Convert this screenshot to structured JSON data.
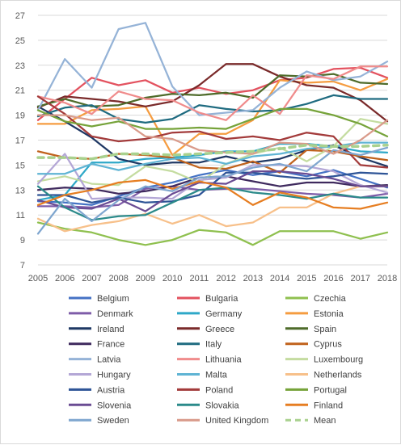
{
  "chart_data": {
    "type": "line",
    "title": "",
    "xlabel": "",
    "ylabel": "",
    "x": [
      "2005",
      "2006",
      "2007",
      "2008",
      "2009",
      "2010",
      "2011",
      "2012",
      "2013",
      "2014",
      "2015",
      "2016",
      "2017",
      "2018"
    ],
    "ylim": [
      7,
      27
    ],
    "yticks": [
      7,
      9,
      11,
      13,
      15,
      17,
      19,
      21,
      23,
      25,
      27
    ],
    "grid": "horizontal",
    "legend_position": "bottom",
    "series": [
      {
        "name": "Belgium",
        "color": "#4472c4",
        "values": [
          12.1,
          12.0,
          11.8,
          12.5,
          13.2,
          13.6,
          14.2,
          14.6,
          14.2,
          14.5,
          14.1,
          14.6,
          13.9,
          13.2
        ]
      },
      {
        "name": "Bulgaria",
        "color": "#e3525f",
        "values": [
          18.6,
          20.3,
          22.0,
          21.4,
          21.8,
          20.8,
          21.2,
          20.7,
          21.0,
          21.8,
          22.0,
          22.7,
          22.8,
          22.0
        ]
      },
      {
        "name": "Czechia",
        "color": "#8fc04f",
        "values": [
          10.4,
          9.9,
          9.6,
          9.0,
          8.6,
          9.0,
          9.8,
          9.6,
          8.6,
          9.7,
          9.7,
          9.7,
          9.1,
          9.6
        ]
      },
      {
        "name": "Denmark",
        "color": "#7e5ca8",
        "values": [
          11.7,
          11.7,
          11.6,
          11.8,
          13.1,
          13.3,
          13.0,
          13.1,
          13.1,
          12.9,
          12.7,
          12.6,
          12.4,
          12.7
        ]
      },
      {
        "name": "Germany",
        "color": "#2ea8c8",
        "values": [
          12.2,
          12.6,
          15.2,
          15.2,
          15.5,
          15.6,
          15.8,
          16.1,
          16.1,
          16.7,
          16.7,
          16.5,
          16.1,
          16.0
        ]
      },
      {
        "name": "Estonia",
        "color": "#f59c40",
        "values": [
          18.3,
          18.3,
          19.4,
          19.5,
          19.7,
          15.8,
          17.5,
          17.5,
          18.6,
          21.8,
          21.6,
          21.7,
          21.0,
          21.9
        ]
      },
      {
        "name": "Ireland",
        "color": "#1f3864",
        "values": [
          19.7,
          18.5,
          17.2,
          15.5,
          15.0,
          15.2,
          15.2,
          15.7,
          15.2,
          15.5,
          16.2,
          16.6,
          15.6,
          14.9
        ]
      },
      {
        "name": "Greece",
        "color": "#7a2a2a",
        "values": [
          19.6,
          20.5,
          20.3,
          20.1,
          19.7,
          20.1,
          21.4,
          23.1,
          23.1,
          22.1,
          21.4,
          21.2,
          20.2,
          18.5
        ]
      },
      {
        "name": "Spain",
        "color": "#4e6b2a",
        "values": [
          19.7,
          20.3,
          19.7,
          19.8,
          20.4,
          20.7,
          20.6,
          20.8,
          20.4,
          22.2,
          22.1,
          22.3,
          21.6,
          21.5
        ]
      },
      {
        "name": "France",
        "color": "#3f2a5e",
        "values": [
          13.0,
          13.2,
          13.1,
          12.7,
          12.9,
          13.3,
          14.0,
          14.1,
          13.7,
          13.3,
          13.6,
          13.6,
          13.3,
          13.4
        ]
      },
      {
        "name": "Italy",
        "color": "#1f6b80",
        "values": [
          18.9,
          19.6,
          19.8,
          18.7,
          18.4,
          18.7,
          19.8,
          19.5,
          19.3,
          19.4,
          19.9,
          20.6,
          20.3,
          20.3
        ]
      },
      {
        "name": "Cyprus",
        "color": "#c0621c",
        "values": [
          16.1,
          15.6,
          15.5,
          15.9,
          15.8,
          15.6,
          14.8,
          14.7,
          15.3,
          14.4,
          16.2,
          16.1,
          15.7,
          15.4
        ]
      },
      {
        "name": "Latvia",
        "color": "#95b3d7",
        "values": [
          19.4,
          23.5,
          21.2,
          25.9,
          26.4,
          21.3,
          19.0,
          19.2,
          19.4,
          21.2,
          22.5,
          21.8,
          22.1,
          23.3
        ]
      },
      {
        "name": "Lithuania",
        "color": "#f08c8c",
        "values": [
          20.5,
          20.0,
          19.1,
          20.9,
          20.3,
          20.2,
          19.2,
          18.6,
          20.6,
          19.1,
          22.2,
          21.9,
          22.9,
          22.9
        ]
      },
      {
        "name": "Luxembourg",
        "color": "#c4dca0",
        "values": [
          13.7,
          14.1,
          13.5,
          13.4,
          14.9,
          14.5,
          13.6,
          15.1,
          15.9,
          16.4,
          15.3,
          16.5,
          18.7,
          18.3
        ]
      },
      {
        "name": "Hungary",
        "color": "#b4a7d6",
        "values": [
          13.5,
          15.9,
          12.3,
          12.4,
          12.4,
          12.3,
          13.8,
          14.0,
          15.0,
          15.0,
          14.9,
          14.5,
          13.4,
          12.8
        ]
      },
      {
        "name": "Malta",
        "color": "#5fb4d4",
        "values": [
          14.3,
          14.3,
          15.1,
          14.6,
          15.1,
          15.5,
          15.6,
          15.1,
          15.7,
          15.9,
          16.3,
          16.5,
          16.8,
          16.8
        ]
      },
      {
        "name": "Netherlands",
        "color": "#f7c08a",
        "values": [
          10.7,
          9.7,
          10.2,
          10.5,
          11.1,
          10.3,
          11.0,
          10.1,
          10.4,
          11.6,
          11.6,
          12.7,
          13.3,
          13.3
        ]
      },
      {
        "name": "Austria",
        "color": "#2f5597",
        "values": [
          12.6,
          12.6,
          12.0,
          12.4,
          12.0,
          12.1,
          12.6,
          14.4,
          14.4,
          14.1,
          13.9,
          14.1,
          14.4,
          14.3
        ]
      },
      {
        "name": "Poland",
        "color": "#a33b3b",
        "values": [
          20.5,
          19.1,
          17.3,
          16.9,
          17.1,
          17.6,
          17.7,
          17.1,
          17.3,
          17.0,
          17.6,
          17.3,
          15.0,
          14.8
        ]
      },
      {
        "name": "Portugal",
        "color": "#76a33a",
        "values": [
          19.4,
          18.5,
          18.1,
          18.5,
          17.9,
          17.9,
          18.0,
          17.9,
          18.7,
          19.5,
          19.5,
          19.0,
          18.3,
          17.3
        ]
      },
      {
        "name": "Slovenia",
        "color": "#6a4c93",
        "values": [
          12.2,
          11.6,
          11.5,
          12.3,
          11.3,
          12.7,
          13.6,
          13.5,
          14.5,
          14.5,
          14.3,
          13.9,
          13.3,
          13.3
        ]
      },
      {
        "name": "Slovakia",
        "color": "#2b8a8a",
        "values": [
          13.3,
          11.6,
          10.6,
          10.9,
          11.0,
          12.0,
          13.0,
          13.2,
          12.8,
          12.6,
          12.3,
          12.7,
          12.4,
          12.4
        ]
      },
      {
        "name": "Finland",
        "color": "#e67e22",
        "values": [
          11.8,
          12.6,
          13.0,
          13.6,
          13.8,
          13.1,
          13.7,
          13.2,
          11.8,
          12.8,
          12.4,
          11.6,
          11.5,
          12.0
        ]
      },
      {
        "name": "Sweden",
        "color": "#7fa6cf",
        "values": [
          9.5,
          12.3,
          10.5,
          12.2,
          13.3,
          12.9,
          14.0,
          14.1,
          14.8,
          15.1,
          14.5,
          16.2,
          15.8,
          16.4
        ]
      },
      {
        "name": "United Kingdom",
        "color": "#d99a8a",
        "values": [
          19.0,
          19.0,
          18.6,
          18.8,
          17.3,
          17.1,
          16.2,
          16.0,
          15.9,
          16.8,
          16.7,
          15.9,
          17.0,
          18.6
        ]
      },
      {
        "name": "Mean",
        "color": "#a9d18e",
        "dashed": true,
        "values": [
          15.6,
          15.6,
          15.5,
          15.9,
          15.9,
          15.8,
          15.9,
          16.0,
          16.1,
          16.3,
          16.6,
          16.5,
          16.5,
          16.6
        ]
      }
    ]
  }
}
